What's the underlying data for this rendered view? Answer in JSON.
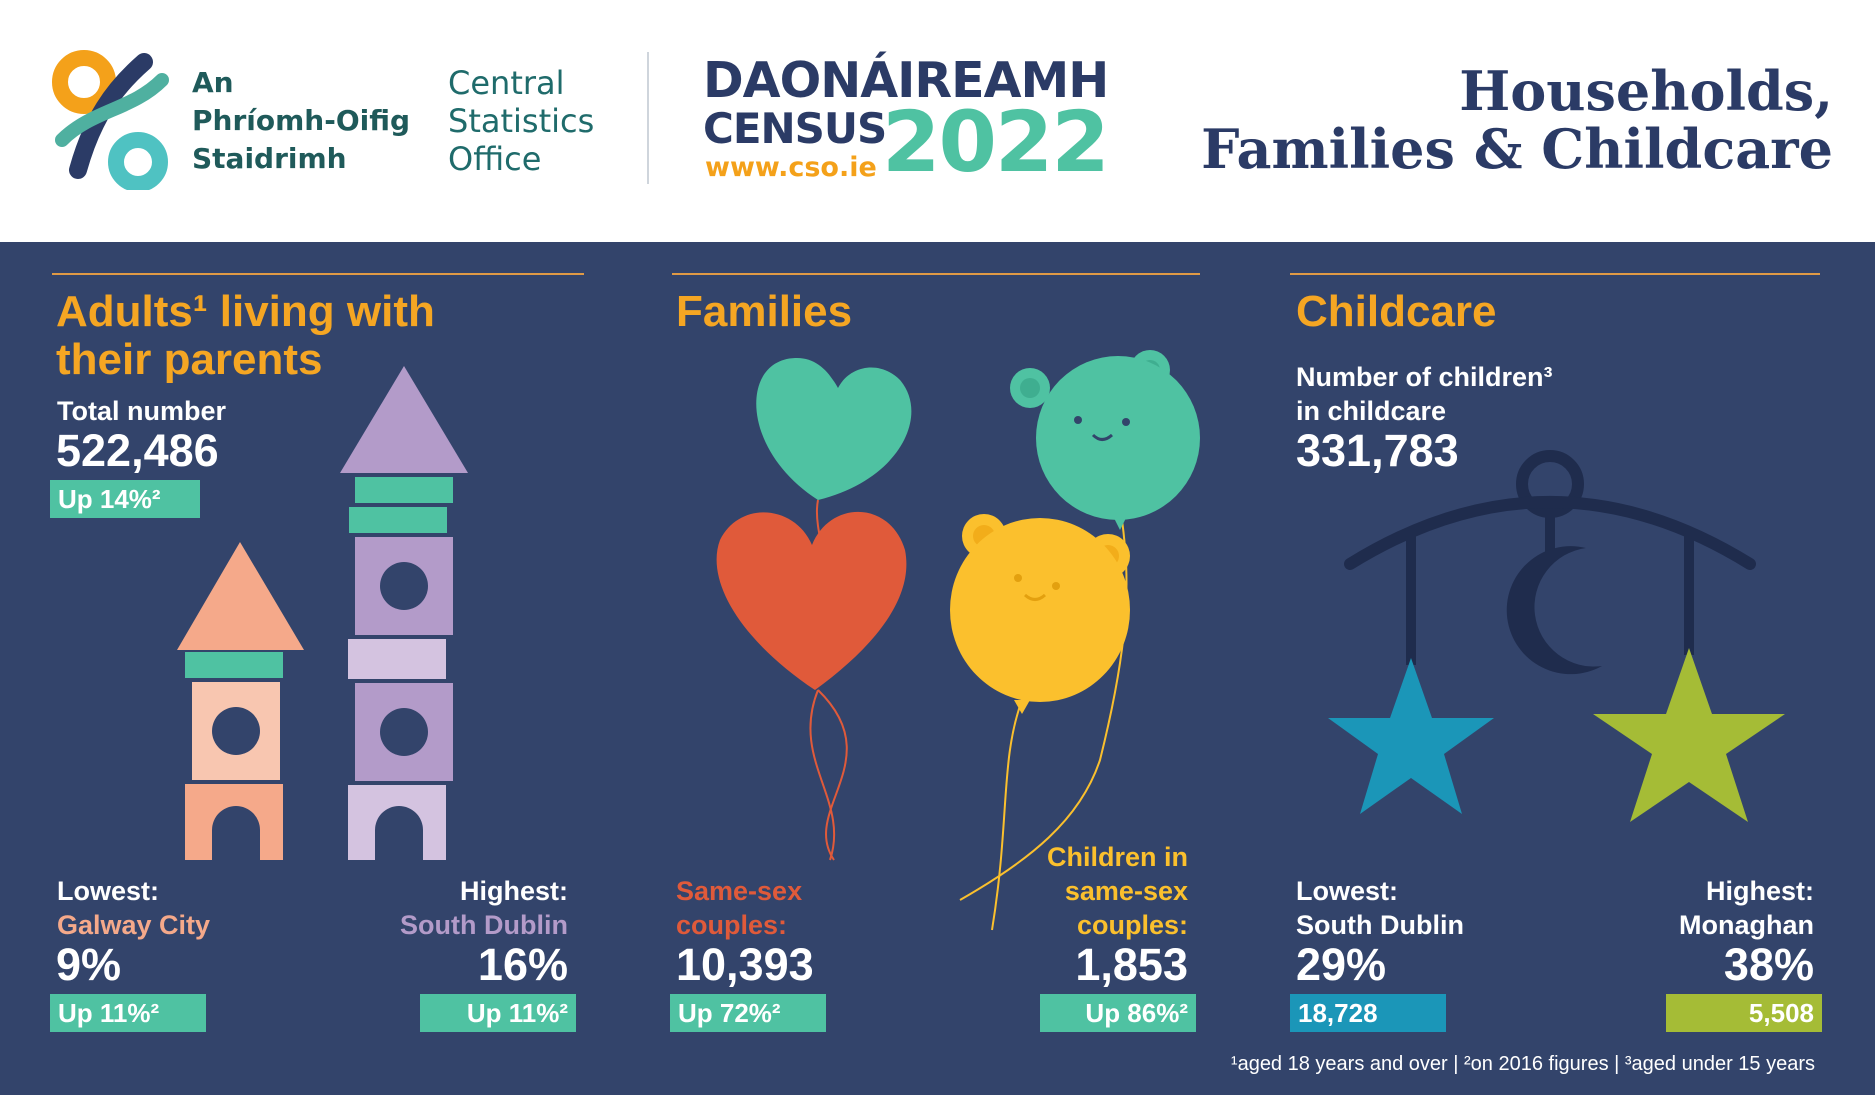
{
  "org": {
    "irish_name": [
      "An",
      "Phríomh-Oifig",
      "Staidrimh"
    ],
    "english_name": [
      "Central",
      "Statistics",
      "Office"
    ]
  },
  "census": {
    "irish": "DAONÁIREAMH",
    "english": "CENSUS",
    "url": "www.cso.ie",
    "year": "2022"
  },
  "title": [
    "Households,",
    "Families & Childcare"
  ],
  "colors": {
    "navy": "#33446b",
    "orange_heading": "#f5a623",
    "teal": "#4fc2a2",
    "salmon": "#f5a98a",
    "lavender": "#b39bc9",
    "red": "#e05a3a",
    "yellow": "#fbc02d",
    "blue": "#1b96b8",
    "lime": "#a5bc36"
  },
  "adults": {
    "title": [
      "Adults¹ living with",
      "their parents"
    ],
    "total_label": "Total number",
    "total_value": "522,486",
    "total_change": "Up 14%²",
    "lowest_label": "Lowest:",
    "lowest_place": "Galway City",
    "lowest_pct": "9%",
    "lowest_change": "Up 11%²",
    "highest_label": "Highest:",
    "highest_place": "South Dublin",
    "highest_pct": "16%",
    "highest_change": "Up 11%²"
  },
  "families": {
    "title": "Families",
    "samesex_label": [
      "Same-sex",
      "couples:"
    ],
    "samesex_value": "10,393",
    "samesex_change": "Up 72%²",
    "children_label": [
      "Children in",
      "same-sex",
      "couples:"
    ],
    "children_value": "1,853",
    "children_change": "Up 86%²"
  },
  "childcare": {
    "title": "Childcare",
    "number_label": [
      "Number of children³",
      "in childcare"
    ],
    "number_value": "331,783",
    "lowest_label": "Lowest:",
    "lowest_place": "South Dublin",
    "lowest_pct": "29%",
    "lowest_count": "18,728",
    "highest_label": "Highest:",
    "highest_place": "Monaghan",
    "highest_pct": "38%",
    "highest_count": "5,508"
  },
  "footnote": "¹aged 18 years and over   |   ²on 2016 figures   |   ³aged under 15 years",
  "icons": [
    "cso-logo-icon",
    "toy-block-tower-icon",
    "heart-balloon-icon",
    "bear-balloon-icon",
    "baby-mobile-icon",
    "moon-icon",
    "star-icon"
  ]
}
